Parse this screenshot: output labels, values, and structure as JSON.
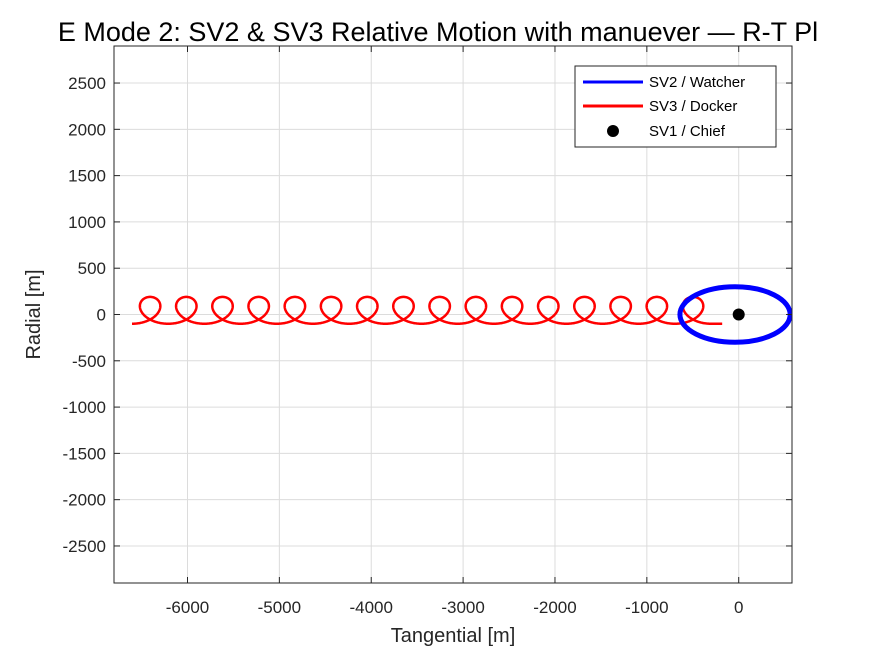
{
  "chart_data": {
    "type": "line",
    "title": "E Mode 2: SV2 & SV3 Relative Motion with manuever — R-T Pl",
    "xlabel": "Tangential [m]",
    "ylabel": "Radial [m]",
    "xlim": [
      -6800,
      580
    ],
    "ylim": [
      -2900,
      2900
    ],
    "xticks": [
      -6000,
      -5000,
      -4000,
      -3000,
      -2000,
      -1000,
      0
    ],
    "xtick_labels": [
      "-6000",
      "-5000",
      "-4000",
      "-3000",
      "-2000",
      "-1000",
      "0"
    ],
    "yticks": [
      2500,
      2000,
      1500,
      1000,
      500,
      0,
      -500,
      -1000,
      -1500,
      -2000,
      -2500
    ],
    "ytick_labels": [
      "2500",
      "2000",
      "1500",
      "1000",
      "500",
      "0",
      "-500",
      "-1000",
      "-1500",
      "-2000",
      "-2500"
    ],
    "grid": true,
    "legend_position": "top-right",
    "series": [
      {
        "name": "SV2 / Watcher",
        "kind": "ellipse",
        "color": "#0000ff",
        "center": [
          -40,
          0
        ],
        "semi_axis_tangential": 600,
        "semi_axis_radial": 300
      },
      {
        "name": "SV3 / Docker",
        "kind": "drifting-loops",
        "color": "#ff0000",
        "start": [
          -300,
          -100
        ],
        "loop_count": 16,
        "loop_spacing_tangential": 394,
        "semi_axis_tangential": 200,
        "radial_top": 190,
        "radial_bottom": -100
      },
      {
        "name": "SV1 / Chief",
        "kind": "point",
        "color": "#000000",
        "x": 0,
        "y": 0
      }
    ]
  }
}
